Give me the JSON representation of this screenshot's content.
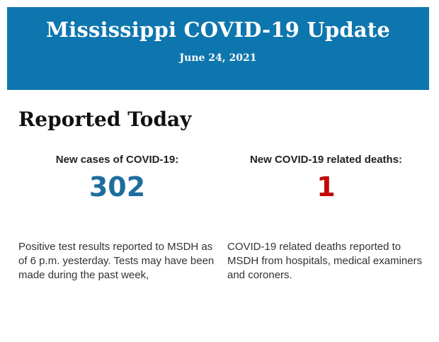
{
  "header": {
    "title": "Mississippi COVID-19 Update",
    "date": "June 24, 2021",
    "background_color": "#0e76ae",
    "text_color": "#ffffff"
  },
  "section": {
    "heading": "Reported Today"
  },
  "stats": [
    {
      "label": "New cases of COVID-19:",
      "value": "302",
      "value_color": "#1d6d9e",
      "description": "Positive test results reported to MSDH as of 6 p.m. yesterday. Tests may have been made during the past week,"
    },
    {
      "label": "New COVID-19 related deaths:",
      "value": "1",
      "value_color": "#c20808",
      "description": "COVID-19 related deaths reported to MSDH from hospitals, medical examiners and coroners."
    }
  ]
}
